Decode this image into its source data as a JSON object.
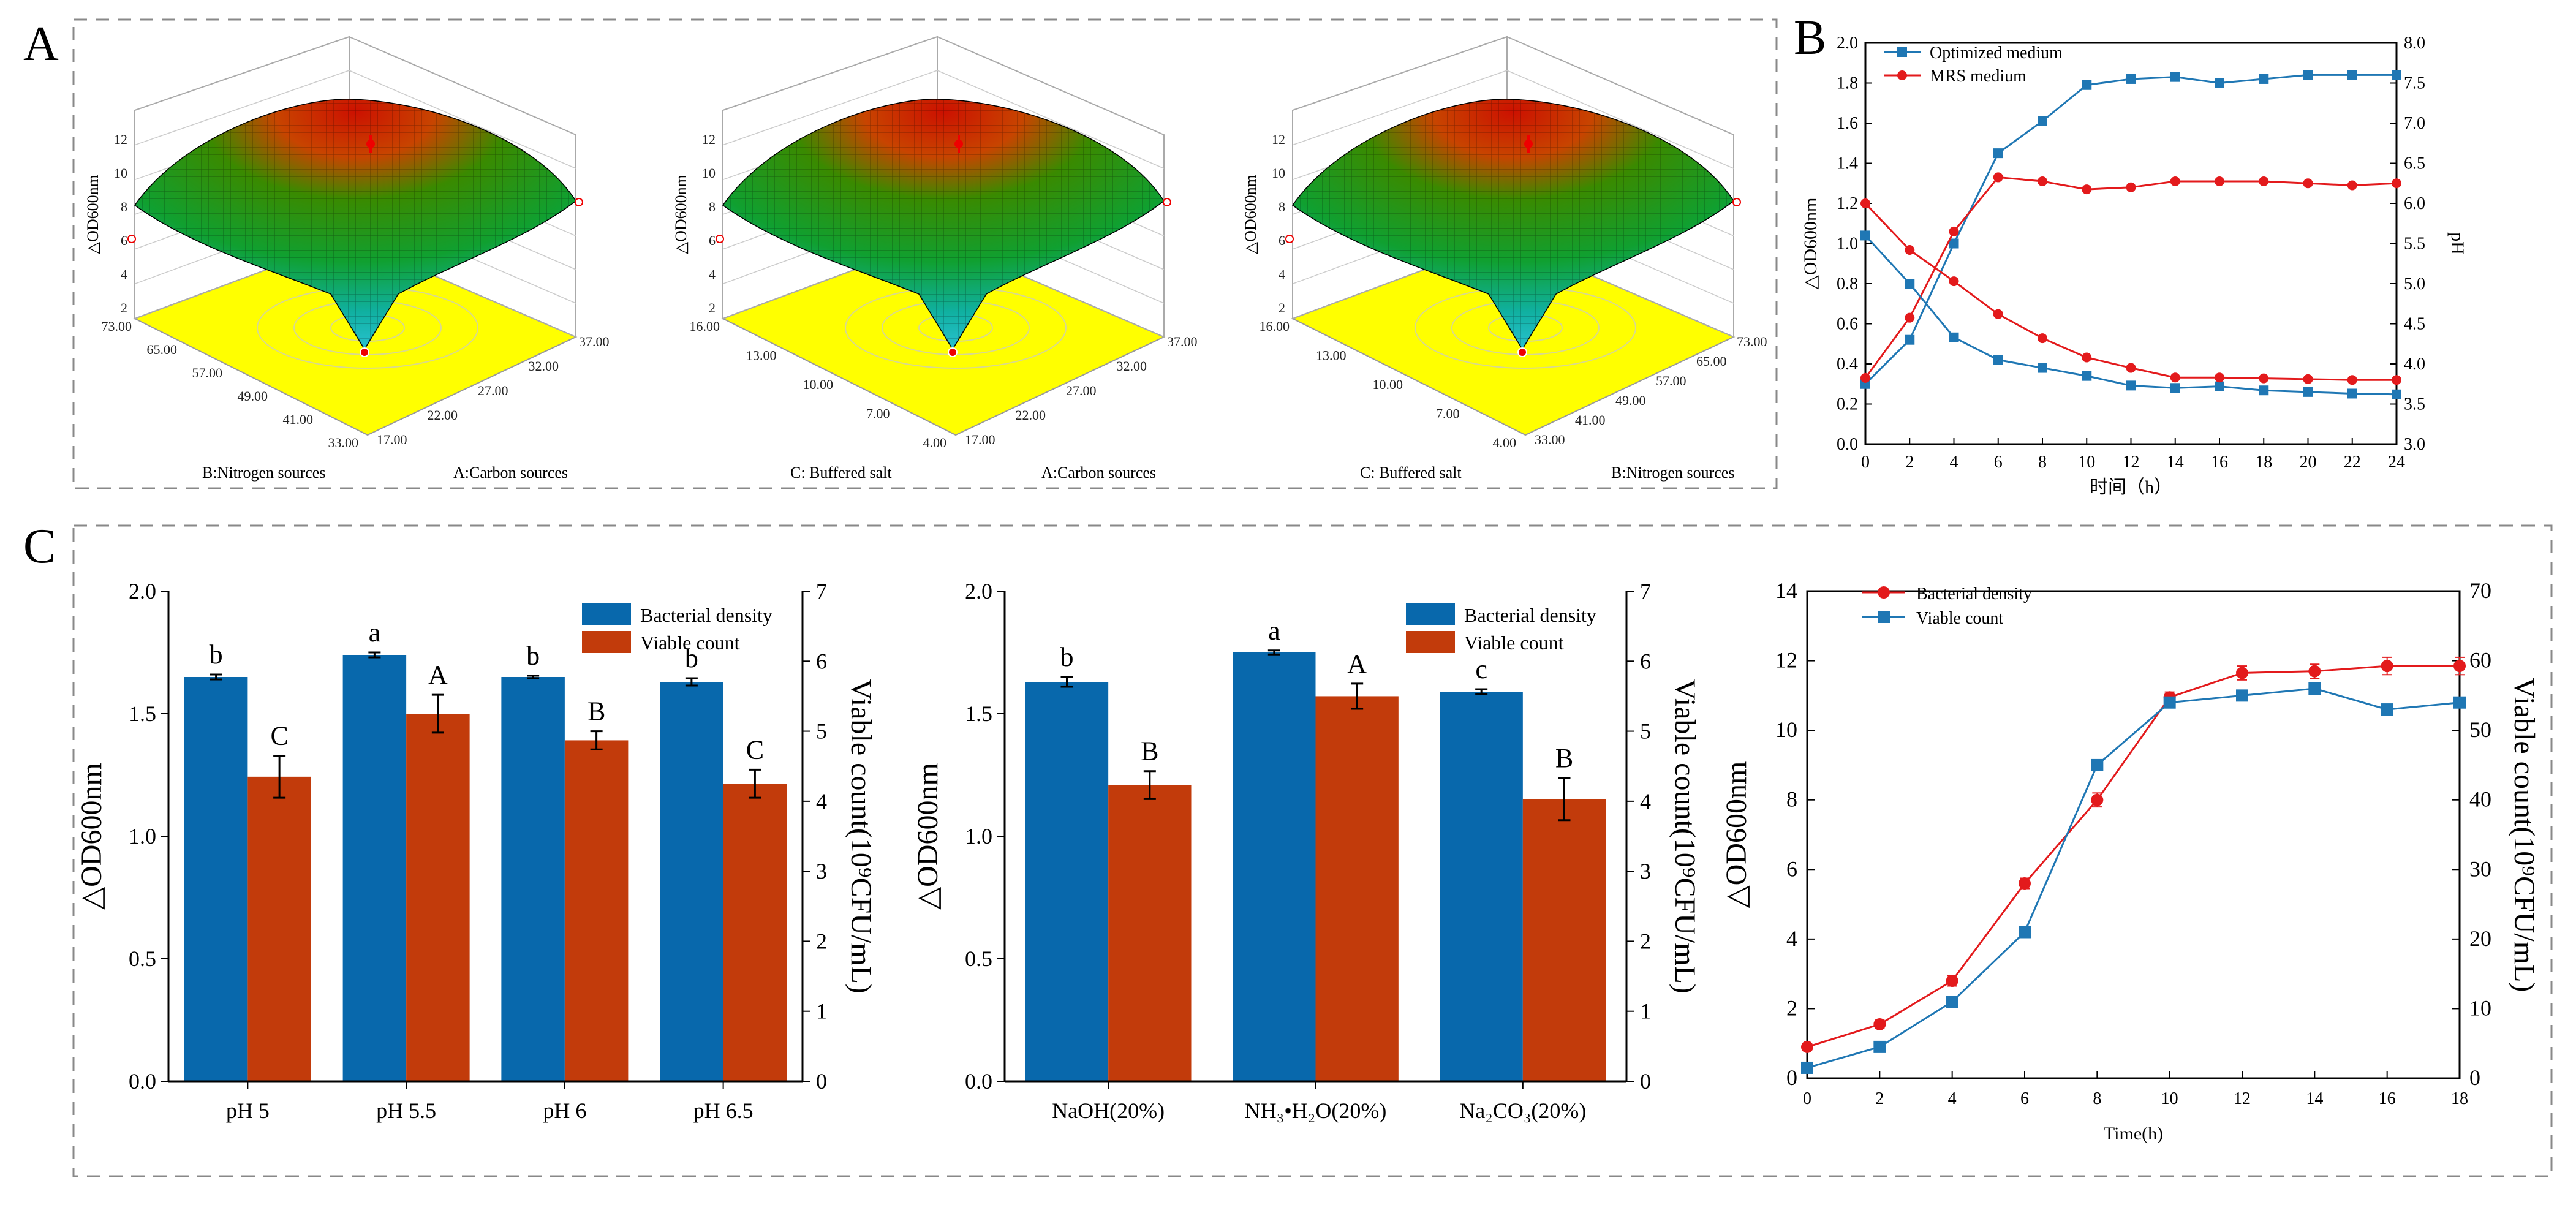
{
  "panels": {
    "A": "A",
    "B": "B",
    "C": "C"
  },
  "chart_data": [
    {
      "id": "A1",
      "type": "surface",
      "title": "",
      "zlabel": "△OD600nm",
      "zticks": [
        "2",
        "4",
        "6",
        "8",
        "10",
        "12"
      ],
      "xlabel": "A:Carbon sources",
      "xticks": [
        "17.00",
        "22.00",
        "27.00",
        "32.00",
        "37.00"
      ],
      "ylabel": "B:Nitrogen sources",
      "yticks": [
        "33.00",
        "41.00",
        "49.00",
        "57.00",
        "65.00",
        "73.00"
      ]
    },
    {
      "id": "A2",
      "type": "surface",
      "zlabel": "△OD600nm",
      "zticks": [
        "2",
        "4",
        "6",
        "8",
        "10",
        "12"
      ],
      "xlabel": "A:Carbon sources",
      "xticks": [
        "17.00",
        "22.00",
        "27.00",
        "32.00",
        "37.00"
      ],
      "ylabel": "C: Buffered salt",
      "yticks": [
        "4.00",
        "7.00",
        "10.00",
        "13.00",
        "16.00"
      ]
    },
    {
      "id": "A3",
      "type": "surface",
      "zlabel": "△OD600nm",
      "zticks": [
        "2",
        "4",
        "6",
        "8",
        "10",
        "12"
      ],
      "xlabel": "B:Nitrogen sources",
      "xticks": [
        "33.00",
        "41.00",
        "49.00",
        "57.00",
        "65.00",
        "73.00"
      ],
      "ylabel": "C: Buffered salt",
      "yticks": [
        "4.00",
        "7.00",
        "10.00",
        "13.00",
        "16.00"
      ]
    },
    {
      "id": "B",
      "type": "line",
      "x": [
        0,
        2,
        4,
        6,
        8,
        10,
        12,
        14,
        16,
        18,
        20,
        22,
        24
      ],
      "xticks": [
        0,
        2,
        4,
        6,
        8,
        10,
        12,
        14,
        16,
        18,
        20,
        22,
        24
      ],
      "xlabel": "时间（h）",
      "ylabel": "△OD600nm",
      "ylim": [
        0,
        2.0
      ],
      "yticks": [
        "0.0",
        "0.2",
        "0.4",
        "0.6",
        "0.8",
        "1.0",
        "1.2",
        "1.4",
        "1.6",
        "1.8",
        "2.0"
      ],
      "y2label": "pH",
      "y2lim": [
        3.0,
        8.0
      ],
      "y2ticks": [
        "3.0",
        "3.5",
        "4.0",
        "4.5",
        "5.0",
        "5.5",
        "6.0",
        "6.5",
        "7.0",
        "7.5",
        "8.0"
      ],
      "series": [
        {
          "name": "Optimized  medium",
          "color": "#1f77b4",
          "marker": "square",
          "axis": "left",
          "values": [
            0.3,
            0.52,
            1.0,
            1.45,
            1.61,
            1.79,
            1.82,
            1.83,
            1.8,
            1.82,
            1.84,
            1.84,
            1.84
          ]
        },
        {
          "name": "MRS medium",
          "color": "#e31a1c",
          "marker": "circle",
          "axis": "left",
          "values": [
            0.33,
            0.63,
            1.06,
            1.33,
            1.31,
            1.27,
            1.28,
            1.31,
            1.31,
            1.31,
            1.3,
            1.29,
            1.3
          ]
        },
        {
          "name": "Optimized pH",
          "color": "#1f77b4",
          "marker": "square",
          "axis": "right",
          "legend": false,
          "values": [
            5.6,
            5.0,
            4.33,
            4.05,
            3.95,
            3.85,
            3.73,
            3.7,
            3.72,
            3.67,
            3.65,
            3.63,
            3.62
          ]
        },
        {
          "name": "MRS pH",
          "color": "#e31a1c",
          "marker": "circle",
          "axis": "right",
          "legend": false,
          "values": [
            6.0,
            5.42,
            5.03,
            4.62,
            4.32,
            4.08,
            3.95,
            3.83,
            3.83,
            3.82,
            3.81,
            3.8,
            3.8
          ]
        }
      ]
    },
    {
      "id": "C1",
      "type": "bar",
      "categories": [
        "pH 5",
        "pH 5.5",
        "pH 6",
        "pH 6.5"
      ],
      "ylabel": "△OD600nm",
      "ylim": [
        0,
        2.0
      ],
      "yticks": [
        "0.0",
        "0.5",
        "1.0",
        "1.5",
        "2.0"
      ],
      "y2label": "Viable count(10⁹CFU/mL)",
      "y2lim": [
        0,
        7
      ],
      "y2ticks": [
        "0",
        "1",
        "2",
        "3",
        "4",
        "5",
        "6",
        "7"
      ],
      "series": [
        {
          "name": "Bacterial density",
          "color": "#0868ac",
          "axis": "left",
          "values": [
            1.65,
            1.74,
            1.65,
            1.63
          ],
          "errors": [
            0.01,
            0.01,
            0.005,
            0.015
          ],
          "labels": [
            "b",
            "a",
            "b",
            "b"
          ]
        },
        {
          "name": "Viable count",
          "color": "#c23b0b",
          "axis": "right",
          "values": [
            4.35,
            5.25,
            4.87,
            4.25
          ],
          "errors": [
            0.3,
            0.27,
            0.13,
            0.2
          ],
          "labels": [
            "C",
            "A",
            "B",
            "C"
          ]
        }
      ]
    },
    {
      "id": "C2",
      "type": "bar",
      "categories": [
        "NaOH(20%)",
        "NH₃•H₂O(20%)",
        "Na₂CO₃(20%)"
      ],
      "ylabel": "△OD600nm",
      "ylim": [
        0,
        2.0
      ],
      "yticks": [
        "0.0",
        "0.5",
        "1.0",
        "1.5",
        "2.0"
      ],
      "y2label": "Viable count(10⁹CFU/mL)",
      "y2lim": [
        0,
        7
      ],
      "y2ticks": [
        "0",
        "1",
        "2",
        "3",
        "4",
        "5",
        "6",
        "7"
      ],
      "series": [
        {
          "name": "Bacterial density",
          "color": "#0868ac",
          "axis": "left",
          "values": [
            1.63,
            1.75,
            1.59
          ],
          "errors": [
            0.02,
            0.008,
            0.01
          ],
          "labels": [
            "b",
            "a",
            "c"
          ]
        },
        {
          "name": "Viable count",
          "color": "#c23b0b",
          "axis": "right",
          "values": [
            4.23,
            5.5,
            4.03
          ],
          "errors": [
            0.2,
            0.18,
            0.3
          ],
          "labels": [
            "B",
            "A",
            "B"
          ]
        }
      ]
    },
    {
      "id": "C3",
      "type": "line",
      "x": [
        0,
        2,
        4,
        6,
        8,
        10,
        12,
        14,
        16,
        18
      ],
      "xticks": [
        0,
        2,
        4,
        6,
        8,
        10,
        12,
        14,
        16,
        18
      ],
      "xlabel": "Time(h)",
      "ylabel": "△OD600nm",
      "ylim": [
        0,
        14
      ],
      "yticks": [
        "0",
        "2",
        "4",
        "6",
        "8",
        "10",
        "12",
        "14"
      ],
      "y2label": "Viable count(10⁹CFU/mL)",
      "y2lim": [
        0,
        70
      ],
      "y2ticks": [
        "0",
        "10",
        "20",
        "30",
        "40",
        "50",
        "60",
        "70"
      ],
      "series": [
        {
          "name": "Bacterial density",
          "color": "#e31a1c",
          "marker": "circle",
          "axis": "left",
          "values": [
            0.9,
            1.55,
            2.8,
            5.6,
            8.0,
            10.95,
            11.65,
            11.7,
            11.85,
            11.85
          ],
          "errors": [
            0.1,
            0.12,
            0.15,
            0.15,
            0.2,
            0.15,
            0.2,
            0.2,
            0.25,
            0.25
          ]
        },
        {
          "name": "Viable count",
          "color": "#1f77b4",
          "marker": "square",
          "axis": "right",
          "values": [
            1.5,
            4.5,
            11,
            21,
            45,
            54,
            55,
            56,
            53,
            54
          ]
        }
      ]
    }
  ]
}
